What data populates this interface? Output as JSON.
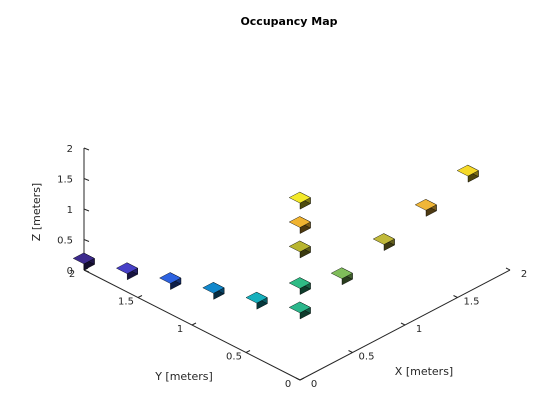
{
  "chart_data": {
    "type": "scatter",
    "title": "Occupancy Map",
    "xlabel": "X [meters]",
    "ylabel": "Y [meters]",
    "zlabel": "Z [meters]",
    "xlim": [
      0,
      2
    ],
    "ylim": [
      0,
      2
    ],
    "zlim": [
      0,
      2
    ],
    "x_ticks": [
      "0",
      "0.5",
      "1",
      "1.5",
      "2"
    ],
    "y_ticks": [
      "0",
      "0.5",
      "1",
      "1.5",
      "2"
    ],
    "z_ticks": [
      "0",
      "0.5",
      "1",
      "1.5",
      "2"
    ],
    "grid": false,
    "marker": "voxel",
    "colormap": "parula",
    "voxel_size": 0.1,
    "points": [
      {
        "x": 0.0,
        "y": 2.0,
        "z": 0.0,
        "color": "#3d2b8e"
      },
      {
        "x": 0.0,
        "y": 1.6,
        "z": 0.2,
        "color": "#4740c7"
      },
      {
        "x": 0.0,
        "y": 1.2,
        "z": 0.4,
        "color": "#2d62e0"
      },
      {
        "x": 0.0,
        "y": 0.8,
        "z": 0.6,
        "color": "#1288cc"
      },
      {
        "x": 0.0,
        "y": 0.4,
        "z": 0.8,
        "color": "#16b0bd"
      },
      {
        "x": 0.0,
        "y": 0.0,
        "z": 1.0,
        "color": "#2bb78b"
      },
      {
        "x": 0.4,
        "y": 0.0,
        "z": 1.2,
        "color": "#7fbc5a"
      },
      {
        "x": 0.8,
        "y": 0.0,
        "z": 1.4,
        "color": "#c1b93a"
      },
      {
        "x": 1.2,
        "y": 0.0,
        "z": 1.6,
        "color": "#f0b637"
      },
      {
        "x": 1.6,
        "y": 0.0,
        "z": 1.8,
        "color": "#f5d928"
      },
      {
        "x": 0.0,
        "y": 0.0,
        "z": 1.4,
        "color": "#2fbb85"
      },
      {
        "x": 0.0,
        "y": 0.0,
        "z": 2.0,
        "color": "#b8b52f"
      },
      {
        "x": 0.0,
        "y": 0.0,
        "z": 2.4,
        "color": "#f0b330"
      },
      {
        "x": 0.0,
        "y": 0.0,
        "z": 2.8,
        "color": "#f3e92a"
      }
    ]
  }
}
